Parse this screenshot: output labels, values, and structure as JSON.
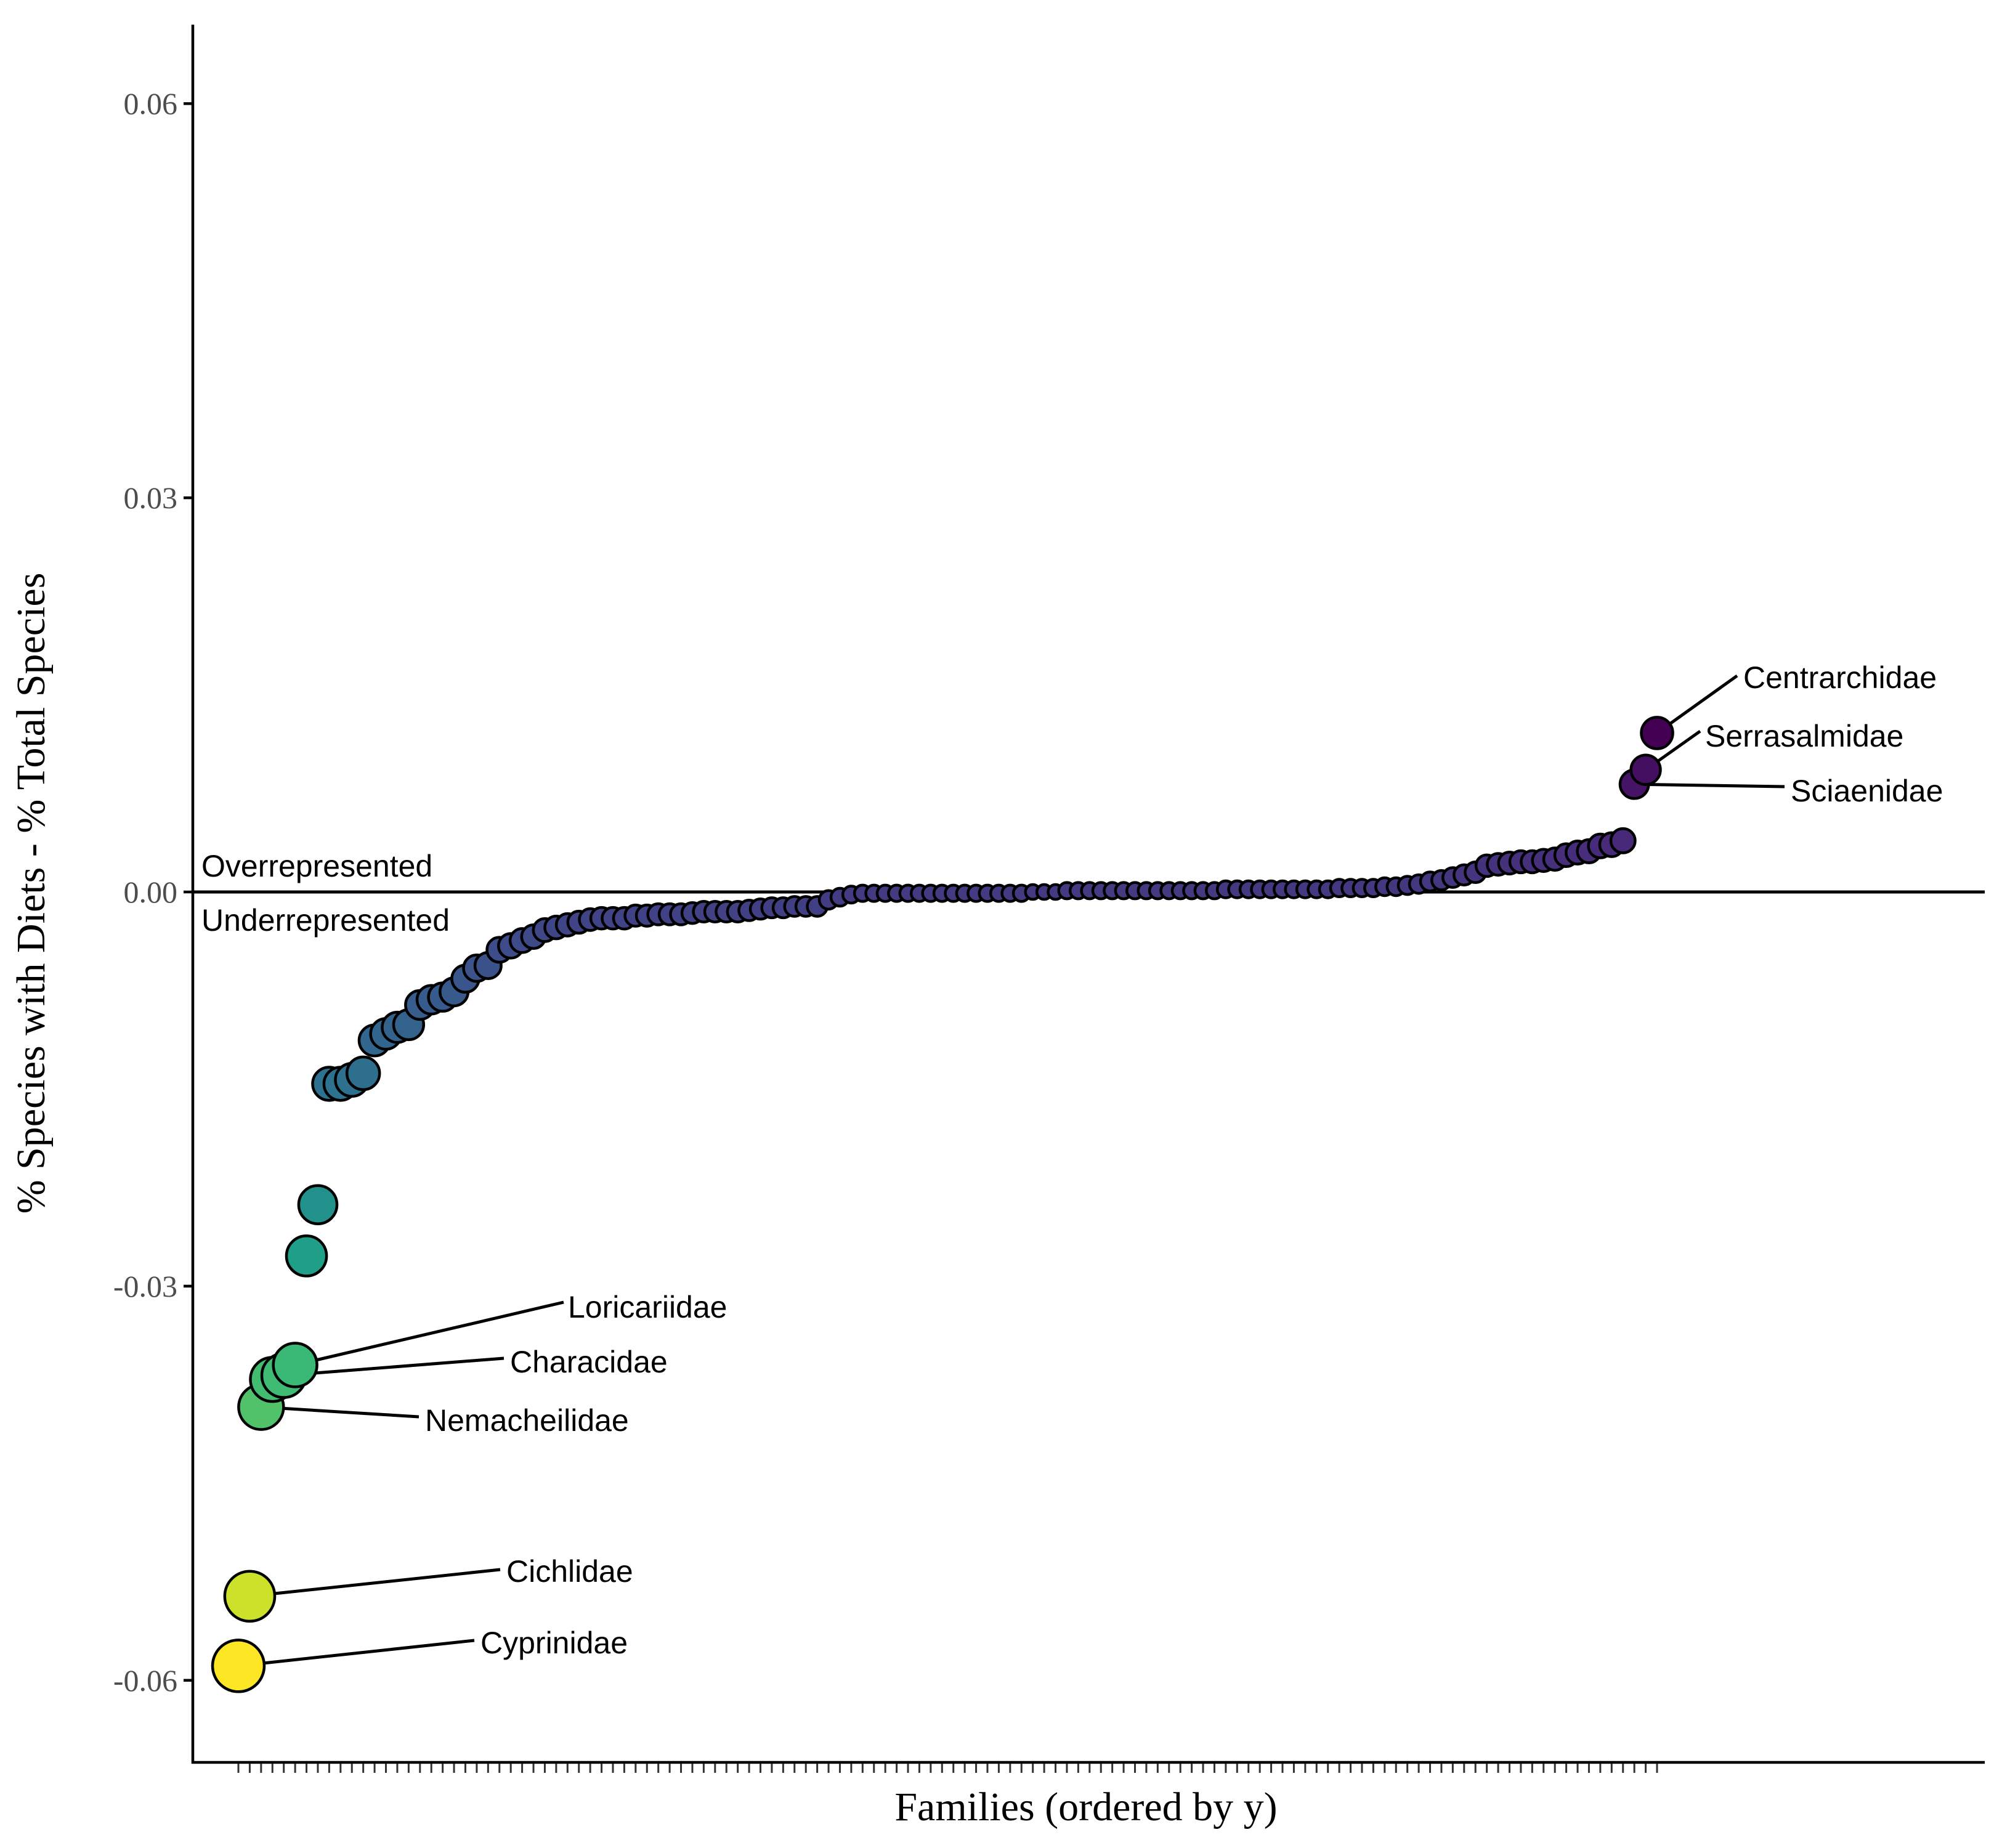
{
  "chart_data": {
    "type": "scatter",
    "title": "",
    "xlabel": "Families (ordered by y)",
    "ylabel": "% Species with Diets - % Total Species",
    "yticks": [
      "0.06",
      "0.03",
      "0.00",
      "-0.03",
      "-0.06"
    ],
    "ytick_values": [
      0.06,
      0.03,
      0.0,
      -0.03,
      -0.06
    ],
    "ylim": [
      -0.0655,
      0.0658
    ],
    "grid": false,
    "reference_line": 0.0,
    "annotations": {
      "above_zero": "Overrepresented",
      "below_zero": "Underrepresented"
    },
    "color_scale": "viridis (larger deficit = yellow, overrepresented = dark purple)",
    "series": [
      {
        "values": [
          -0.0589,
          -0.0536,
          -0.0392,
          -0.0371,
          -0.0368,
          -0.036,
          -0.0277,
          -0.0238,
          -0.0146,
          -0.0146,
          -0.0143,
          -0.0138,
          -0.0113,
          -0.0108,
          -0.0103,
          -0.0101,
          -0.0086,
          -0.0082,
          -0.008,
          -0.0076,
          -0.0066,
          -0.0058,
          -0.0056,
          -0.0044,
          -0.0041,
          -0.0037,
          -0.0034,
          -0.0029,
          -0.0027,
          -0.0025,
          -0.0023,
          -0.0021,
          -0.002,
          -0.002,
          -0.002,
          -0.0018,
          -0.0018,
          -0.0017,
          -0.0017,
          -0.0017,
          -0.0016,
          -0.0015,
          -0.0015,
          -0.0015,
          -0.0015,
          -0.0014,
          -0.0013,
          -0.0012,
          -0.0012,
          -0.0011,
          -0.0011,
          -0.0011,
          -0.0006,
          -0.0004,
          -0.0002,
          -0.0001,
          -0.0001,
          -0.0001,
          -0.0001,
          -0.0001,
          -0.0001,
          -0.0001,
          -0.0001,
          -0.0001,
          -0.0001,
          -0.0001,
          -0.0001,
          -0.0001,
          -0.0001,
          -0.0001,
          0.0,
          0.0,
          0.0,
          0.0001,
          0.0001,
          0.0001,
          0.0001,
          0.0001,
          0.0001,
          0.0001,
          0.0001,
          0.0001,
          0.0001,
          0.0001,
          0.0001,
          0.0001,
          0.0001,
          0.0002,
          0.0002,
          0.0002,
          0.0002,
          0.0002,
          0.0002,
          0.0002,
          0.0002,
          0.0002,
          0.0002,
          0.0003,
          0.0003,
          0.0003,
          0.0003,
          0.0004,
          0.0004,
          0.0005,
          0.0006,
          0.0008,
          0.0009,
          0.0011,
          0.0013,
          0.0015,
          0.002,
          0.0021,
          0.0022,
          0.0023,
          0.0023,
          0.0024,
          0.0025,
          0.0028,
          0.003,
          0.0031,
          0.0035,
          0.0036,
          0.0039,
          0.0082,
          0.0093,
          0.0121
        ]
      }
    ],
    "labels": [
      {
        "text": "Centrarchidae",
        "index": 125
      },
      {
        "text": "Serrasalmidae",
        "index": 124
      },
      {
        "text": "Sciaenidae",
        "index": 123
      },
      {
        "text": "Loricariidae",
        "index": 5
      },
      {
        "text": "Characidae",
        "index": 4
      },
      {
        "text": "Nemacheilidae",
        "index": 2
      },
      {
        "text": "Cichlidae",
        "index": 1
      },
      {
        "text": "Cyprinidae",
        "index": 0
      }
    ]
  }
}
